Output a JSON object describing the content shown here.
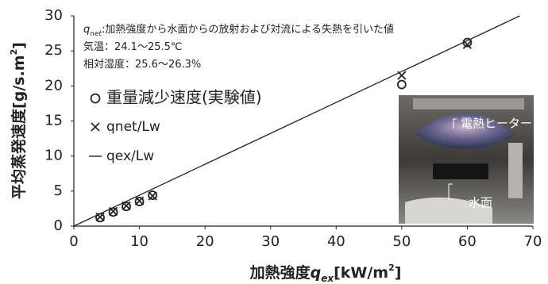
{
  "chart_data": {
    "type": "scatter",
    "x_label_parts": [
      "加熱強度",
      "q",
      "ex",
      "[kW/m",
      "2",
      "]"
    ],
    "y_label_parts": [
      "平均蒸発速度[g/s.m",
      "2",
      "]"
    ],
    "annotations": [
      [
        "q",
        "net",
        ":加熱強度から水面からの放射および対流による失熱を引いた値"
      ],
      [
        "気温：24.1～25.5℃"
      ],
      [
        "相対湿度：25.6～26.3%"
      ]
    ],
    "photo_labels": [
      "電熱ヒーター",
      "水面"
    ],
    "xlim": [
      0,
      70
    ],
    "xticks": [
      0,
      10,
      20,
      30,
      40,
      50,
      60,
      70
    ],
    "ylim": [
      0,
      30
    ],
    "yticks": [
      0,
      5,
      10,
      15,
      20,
      25,
      30
    ],
    "series": [
      {
        "name": "重量減少速度(実験値)",
        "marker": "circle",
        "color": "#222222",
        "x": [
          4,
          6,
          8,
          10,
          12,
          50,
          60
        ],
        "values": [
          1.2,
          2.0,
          2.8,
          3.5,
          4.4,
          20.2,
          26.2
        ]
      },
      {
        "name": "qnet/Lw",
        "marker": "x",
        "color": "#222222",
        "x": [
          4,
          6,
          8,
          10,
          12,
          50,
          60
        ],
        "values": [
          1.3,
          2.1,
          2.9,
          3.6,
          4.3,
          21.5,
          25.9
        ]
      },
      {
        "name": "qex/Lw",
        "marker": "line",
        "color": "#222222",
        "x": [
          0,
          68
        ],
        "values": [
          0,
          30
        ]
      }
    ]
  }
}
